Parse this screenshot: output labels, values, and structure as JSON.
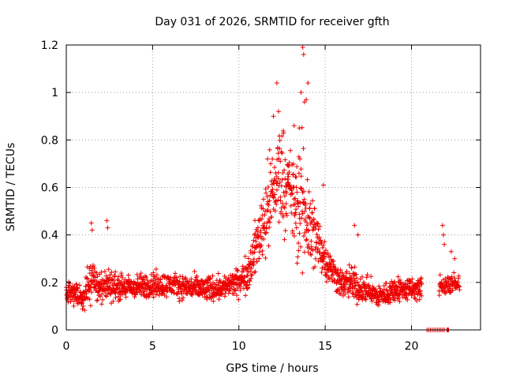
{
  "chart_data": {
    "type": "scatter",
    "title": "Day 031 of 2026, SRMTID for receiver gfth",
    "xlabel": "GPS time / hours",
    "ylabel": "SRMTID / TECUs",
    "xlim": [
      0,
      24
    ],
    "ylim": [
      0,
      1.2
    ],
    "xticks": [
      0,
      5,
      10,
      15,
      20
    ],
    "xtick_labels": [
      "0",
      "5",
      "10",
      "15",
      "20"
    ],
    "yticks": [
      0,
      0.2,
      0.4,
      0.6,
      0.8,
      1.0,
      1.2
    ],
    "ytick_labels": [
      "0",
      "0.2",
      "0.4",
      "0.6",
      "0.8",
      "1",
      "1.2"
    ],
    "grid": true,
    "marker": "plus",
    "series": [
      {
        "name": "SRMTID",
        "color": "#ee0000",
        "profile": {
          "description": "envelope of scattered values by hour: baseline (typical value) and spread (half-range)",
          "hours": [
            0.0,
            1.0,
            1.5,
            2.0,
            2.5,
            3.0,
            4.0,
            5.0,
            6.0,
            7.0,
            8.0,
            9.0,
            10.0,
            10.5,
            11.0,
            11.5,
            12.0,
            12.3,
            12.6,
            13.0,
            13.4,
            13.7,
            14.0,
            14.5,
            15.0,
            15.5,
            16.0,
            16.5,
            17.0,
            17.5,
            18.0,
            18.5,
            19.0,
            19.5,
            20.0,
            20.5
          ],
          "baseline": [
            0.16,
            0.14,
            0.22,
            0.17,
            0.19,
            0.18,
            0.18,
            0.19,
            0.19,
            0.18,
            0.17,
            0.18,
            0.2,
            0.24,
            0.35,
            0.48,
            0.58,
            0.66,
            0.64,
            0.58,
            0.5,
            0.52,
            0.46,
            0.38,
            0.3,
            0.24,
            0.19,
            0.2,
            0.17,
            0.17,
            0.14,
            0.15,
            0.17,
            0.17,
            0.17,
            0.17
          ],
          "spread": [
            0.07,
            0.07,
            0.14,
            0.08,
            0.1,
            0.08,
            0.07,
            0.08,
            0.07,
            0.07,
            0.08,
            0.07,
            0.08,
            0.11,
            0.16,
            0.25,
            0.3,
            0.32,
            0.3,
            0.25,
            0.33,
            0.42,
            0.32,
            0.2,
            0.12,
            0.1,
            0.08,
            0.12,
            0.08,
            0.07,
            0.07,
            0.07,
            0.08,
            0.07,
            0.07,
            0.07
          ],
          "start_hour": 0.0,
          "end_hour": 20.6,
          "step_hours": 0.012
        },
        "extra_points": [
          {
            "x": 1.45,
            "y": 0.45
          },
          {
            "x": 1.5,
            "y": 0.42
          },
          {
            "x": 2.35,
            "y": 0.46
          },
          {
            "x": 2.4,
            "y": 0.43
          },
          {
            "x": 12.2,
            "y": 1.04
          },
          {
            "x": 12.3,
            "y": 0.92
          },
          {
            "x": 12.0,
            "y": 0.9
          },
          {
            "x": 13.7,
            "y": 1.19
          },
          {
            "x": 13.75,
            "y": 1.16
          },
          {
            "x": 13.6,
            "y": 1.0
          },
          {
            "x": 14.0,
            "y": 1.04
          },
          {
            "x": 13.9,
            "y": 0.97
          },
          {
            "x": 13.8,
            "y": 0.96
          },
          {
            "x": 13.5,
            "y": 0.85
          },
          {
            "x": 13.2,
            "y": 0.86
          },
          {
            "x": 14.9,
            "y": 0.61
          },
          {
            "x": 16.7,
            "y": 0.44
          },
          {
            "x": 16.9,
            "y": 0.4
          },
          {
            "x": 21.8,
            "y": 0.44
          },
          {
            "x": 21.85,
            "y": 0.4
          },
          {
            "x": 21.9,
            "y": 0.36
          },
          {
            "x": 22.3,
            "y": 0.33
          },
          {
            "x": 22.5,
            "y": 0.3
          }
        ],
        "late_segment": {
          "start_hour": 21.6,
          "end_hour": 22.8,
          "baseline": 0.19,
          "spread": 0.07,
          "step_hours": 0.015
        },
        "zero_points": [
          20.9,
          21.0,
          21.1,
          21.2,
          21.3,
          21.4,
          21.5,
          21.6,
          21.7,
          21.8,
          21.9,
          22.05,
          22.1,
          22.15
        ]
      }
    ]
  }
}
